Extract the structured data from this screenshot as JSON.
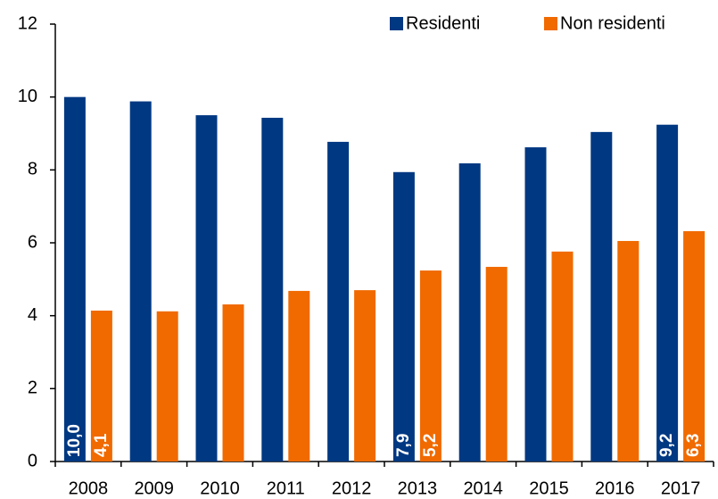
{
  "chart_data": {
    "type": "bar",
    "categories": [
      "2008",
      "2009",
      "2010",
      "2011",
      "2012",
      "2013",
      "2014",
      "2015",
      "2016",
      "2017"
    ],
    "series": [
      {
        "name": "Residenti",
        "color": "#003882",
        "values": [
          10.0,
          9.88,
          9.5,
          9.43,
          8.77,
          7.94,
          8.18,
          8.62,
          9.04,
          9.24
        ],
        "value_labels": [
          "10,0",
          null,
          null,
          null,
          null,
          "7,9",
          null,
          null,
          null,
          "9,2"
        ]
      },
      {
        "name": "Non residenti",
        "color": "#f06a00",
        "values": [
          4.14,
          4.12,
          4.31,
          4.68,
          4.7,
          5.24,
          5.34,
          5.76,
          6.05,
          6.32
        ],
        "value_labels": [
          "4,1",
          null,
          null,
          null,
          null,
          "5,2",
          null,
          null,
          null,
          "6,3"
        ]
      }
    ],
    "ylim": [
      0,
      12
    ],
    "yticks": [
      0,
      2,
      4,
      6,
      8,
      10,
      12
    ],
    "grid": false,
    "legend": "top-right"
  }
}
